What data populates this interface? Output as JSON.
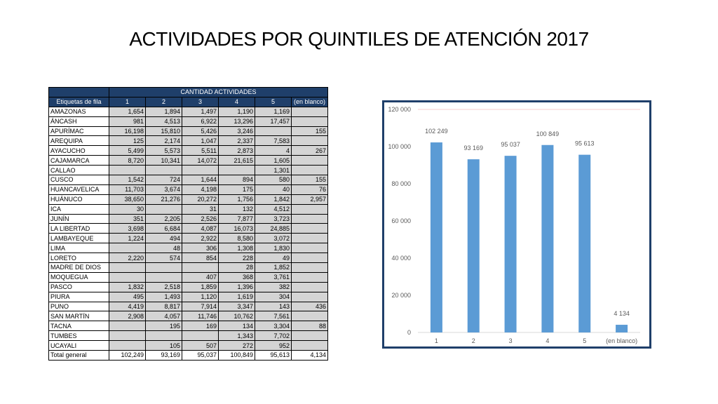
{
  "title": "ACTIVIDADES POR QUINTILES DE ATENCIÓN 2017",
  "table": {
    "group_header": "CANTIDAD ACTIVIDADES",
    "row_label_header": "Etiquetas de fila",
    "columns": [
      "1",
      "2",
      "3",
      "4",
      "5",
      "(en blanco)"
    ],
    "rows": [
      {
        "label": "AMAZONAS",
        "cells": [
          "1,654",
          "1,894",
          "1,497",
          "1,190",
          "1,169",
          ""
        ]
      },
      {
        "label": "ÁNCASH",
        "cells": [
          "981",
          "4,513",
          "6,922",
          "13,296",
          "17,457",
          ""
        ]
      },
      {
        "label": "APURÍMAC",
        "cells": [
          "16,198",
          "15,810",
          "5,426",
          "3,246",
          "",
          "155"
        ]
      },
      {
        "label": "AREQUIPA",
        "cells": [
          "125",
          "2,174",
          "1,047",
          "2,337",
          "7,583",
          ""
        ]
      },
      {
        "label": "AYACUCHO",
        "cells": [
          "5,499",
          "5,573",
          "5,511",
          "2,873",
          "4",
          "267"
        ]
      },
      {
        "label": "CAJAMARCA",
        "cells": [
          "8,720",
          "10,341",
          "14,072",
          "21,615",
          "1,605",
          ""
        ]
      },
      {
        "label": "CALLAO",
        "cells": [
          "",
          "",
          "",
          "",
          "1,301",
          ""
        ]
      },
      {
        "label": "CUSCO",
        "cells": [
          "1,542",
          "724",
          "1,644",
          "894",
          "580",
          "155"
        ]
      },
      {
        "label": "HUANCAVELICA",
        "cells": [
          "11,703",
          "3,674",
          "4,198",
          "175",
          "40",
          "76"
        ]
      },
      {
        "label": "HUÁNUCO",
        "cells": [
          "38,650",
          "21,276",
          "20,272",
          "1,756",
          "1,842",
          "2,957"
        ]
      },
      {
        "label": "ICA",
        "cells": [
          "30",
          "",
          "31",
          "132",
          "4,512",
          ""
        ]
      },
      {
        "label": "JUNÍN",
        "cells": [
          "351",
          "2,205",
          "2,526",
          "7,877",
          "3,723",
          ""
        ]
      },
      {
        "label": "LA LIBERTAD",
        "cells": [
          "3,698",
          "6,684",
          "4,087",
          "16,073",
          "24,885",
          ""
        ]
      },
      {
        "label": "LAMBAYEQUE",
        "cells": [
          "1,224",
          "494",
          "2,922",
          "8,580",
          "3,072",
          ""
        ]
      },
      {
        "label": "LIMA",
        "cells": [
          "",
          "48",
          "306",
          "1,308",
          "1,830",
          ""
        ]
      },
      {
        "label": "LORETO",
        "cells": [
          "2,220",
          "574",
          "854",
          "228",
          "49",
          ""
        ]
      },
      {
        "label": "MADRE DE DIOS",
        "cells": [
          "",
          "",
          "",
          "28",
          "1,852",
          ""
        ]
      },
      {
        "label": "MOQUEGUA",
        "cells": [
          "",
          "",
          "407",
          "368",
          "3,761",
          ""
        ]
      },
      {
        "label": "PASCO",
        "cells": [
          "1,832",
          "2,518",
          "1,859",
          "1,396",
          "382",
          ""
        ]
      },
      {
        "label": "PIURA",
        "cells": [
          "495",
          "1,493",
          "1,120",
          "1,619",
          "304",
          ""
        ]
      },
      {
        "label": "PUNO",
        "cells": [
          "4,419",
          "8,817",
          "7,914",
          "3,347",
          "143",
          "436"
        ]
      },
      {
        "label": "SAN MARTÍN",
        "cells": [
          "2,908",
          "4,057",
          "11,746",
          "10,762",
          "7,561",
          ""
        ]
      },
      {
        "label": "TACNA",
        "cells": [
          "",
          "195",
          "169",
          "134",
          "3,304",
          "88"
        ]
      },
      {
        "label": "TUMBES",
        "cells": [
          "",
          "",
          "",
          "1,343",
          "7,702",
          ""
        ]
      },
      {
        "label": "UCAYALI",
        "cells": [
          "",
          "105",
          "507",
          "272",
          "952",
          ""
        ]
      }
    ],
    "total": {
      "label": "Total general",
      "cells": [
        "102,249",
        "93,169",
        "95,037",
        "100,849",
        "95,613",
        "4,134"
      ]
    }
  },
  "chart_data": {
    "type": "bar",
    "categories": [
      "1",
      "2",
      "3",
      "4",
      "5",
      "(en blanco)"
    ],
    "values": [
      102249,
      93169,
      95037,
      100849,
      95613,
      4134
    ],
    "data_labels": [
      "102 249",
      "93 169",
      "95 037",
      "100 849",
      "95 613",
      "4 134"
    ],
    "ylim": [
      0,
      120000
    ],
    "yticks": [
      0,
      20000,
      40000,
      60000,
      80000,
      100000,
      120000
    ],
    "ytick_labels": [
      "0",
      "20 000",
      "40 000",
      "60 000",
      "80 000",
      "100 000",
      "120 000"
    ],
    "grid": false,
    "bar_color": "#5b9bd5",
    "axis_color": "#d9d9d9",
    "top_line_color": "#f4cccc"
  }
}
